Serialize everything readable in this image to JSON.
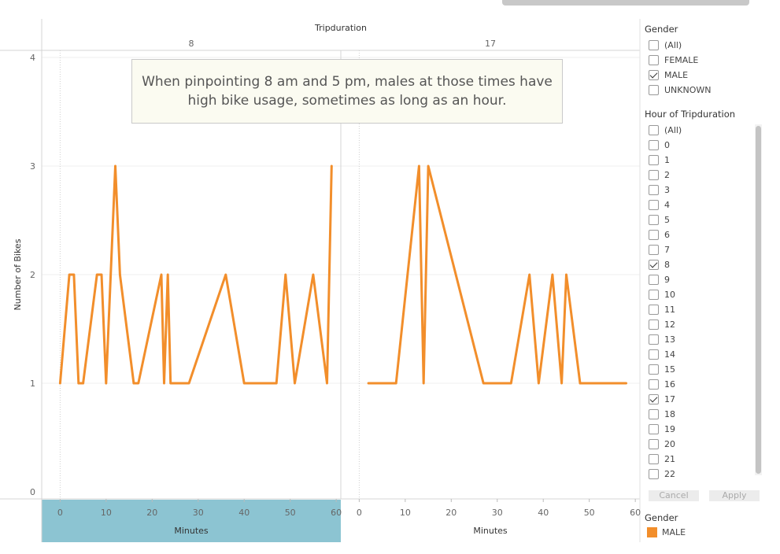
{
  "chart_data": {
    "type": "line",
    "title": "Tripduration",
    "xlabel": "Minutes",
    "ylabel": "Number of Bikes",
    "ylim": [
      0,
      4
    ],
    "yticks": [
      "0",
      "1",
      "2",
      "3",
      "4"
    ],
    "xlim": [
      -4,
      61
    ],
    "xticks": [
      "0",
      "10",
      "20",
      "30",
      "40",
      "50",
      "60"
    ],
    "color": "#f28e2b",
    "panels": [
      {
        "label": "8",
        "x": [
          0,
          2,
          3,
          4,
          5,
          8,
          9,
          10,
          12,
          13,
          16,
          17,
          22,
          22.6,
          23.4,
          24,
          28,
          36,
          40,
          47,
          49,
          51,
          55,
          58,
          59
        ],
        "y": [
          1,
          2,
          2,
          1,
          1,
          2,
          2,
          1,
          3,
          2,
          1,
          1,
          2,
          1,
          2,
          1,
          1,
          2,
          1,
          1,
          2,
          1,
          2,
          1,
          3
        ]
      },
      {
        "label": "17",
        "x": [
          2,
          8,
          13,
          14,
          15,
          27,
          33,
          37,
          39,
          42,
          44,
          45,
          48,
          58
        ],
        "y": [
          1,
          1,
          3,
          1,
          3,
          1,
          1,
          2,
          1,
          2,
          1,
          2,
          1,
          1
        ]
      }
    ]
  },
  "annotation": {
    "line1": "When pinpointing 8 am and 5 pm, males at those times have",
    "line2": "high bike usage, sometimes as long as an hour."
  },
  "filters": {
    "gender": {
      "title": "Gender",
      "items": [
        {
          "label": "(All)",
          "checked": false
        },
        {
          "label": "FEMALE",
          "checked": false
        },
        {
          "label": "MALE",
          "checked": true
        },
        {
          "label": "UNKNOWN",
          "checked": false
        }
      ]
    },
    "hour": {
      "title": "Hour of Tripduration",
      "items": [
        {
          "label": "(All)",
          "checked": false
        },
        {
          "label": "0",
          "checked": false
        },
        {
          "label": "1",
          "checked": false
        },
        {
          "label": "2",
          "checked": false
        },
        {
          "label": "3",
          "checked": false
        },
        {
          "label": "4",
          "checked": false
        },
        {
          "label": "5",
          "checked": false
        },
        {
          "label": "6",
          "checked": false
        },
        {
          "label": "7",
          "checked": false
        },
        {
          "label": "8",
          "checked": true
        },
        {
          "label": "9",
          "checked": false
        },
        {
          "label": "10",
          "checked": false
        },
        {
          "label": "11",
          "checked": false
        },
        {
          "label": "12",
          "checked": false
        },
        {
          "label": "13",
          "checked": false
        },
        {
          "label": "14",
          "checked": false
        },
        {
          "label": "15",
          "checked": false
        },
        {
          "label": "16",
          "checked": false
        },
        {
          "label": "17",
          "checked": true
        },
        {
          "label": "18",
          "checked": false
        },
        {
          "label": "19",
          "checked": false
        },
        {
          "label": "20",
          "checked": false
        },
        {
          "label": "21",
          "checked": false
        },
        {
          "label": "22",
          "checked": false
        }
      ],
      "cancel_label": "Cancel",
      "apply_label": "Apply"
    }
  },
  "legend": {
    "title": "Gender",
    "items": [
      {
        "label": "MALE",
        "color": "#f28e2b"
      }
    ]
  }
}
